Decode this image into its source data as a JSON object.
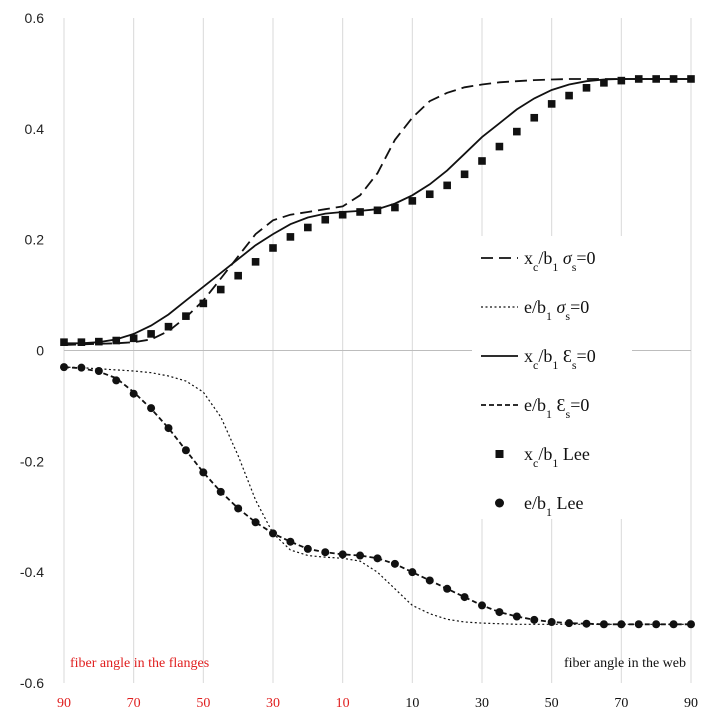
{
  "chart_data": {
    "type": "line",
    "ylim": [
      -0.6,
      0.6
    ],
    "yticks": [
      "0.6",
      "0.4",
      "0.2",
      "0",
      "-0.2",
      "-0.4",
      "-0.6"
    ],
    "x_ticks": [
      {
        "label": "90",
        "group": "flange"
      },
      {
        "label": "70",
        "group": "flange"
      },
      {
        "label": "50",
        "group": "flange"
      },
      {
        "label": "30",
        "group": "flange"
      },
      {
        "label": "10",
        "group": "flange"
      },
      {
        "label": "10",
        "group": "web"
      },
      {
        "label": "30",
        "group": "web"
      },
      {
        "label": "50",
        "group": "web"
      },
      {
        "label": "70",
        "group": "web"
      },
      {
        "label": "90",
        "group": "web"
      }
    ],
    "x_note_left": "fiber angle in the flanges",
    "x_note_right": "fiber angle in the web",
    "grid": "vertical",
    "legend_position": "right-middle",
    "colors": {
      "flange_ticks": "#e02020",
      "web_ticks": "#111111",
      "series": "#111111"
    },
    "series": [
      {
        "legend": {
          "base": "x",
          "sub": "c",
          "mid": "/b",
          "sub2": "1",
          "sym": " σ",
          "sym_sub": "s",
          "tail": "=0"
        },
        "style": "long-dash",
        "marker": "none",
        "x": [
          0,
          10,
          20,
          30,
          40,
          50,
          60,
          70,
          80,
          90,
          100,
          110,
          120,
          130,
          140,
          150,
          160,
          170,
          180,
          190,
          200,
          210,
          220,
          230,
          240,
          250,
          260,
          270,
          280,
          290,
          300,
          310,
          320,
          330,
          340,
          350,
          360
        ],
        "y": [
          0.01,
          0.011,
          0.012,
          0.013,
          0.015,
          0.02,
          0.035,
          0.06,
          0.09,
          0.13,
          0.17,
          0.21,
          0.235,
          0.245,
          0.25,
          0.255,
          0.26,
          0.28,
          0.32,
          0.38,
          0.42,
          0.45,
          0.465,
          0.475,
          0.48,
          0.484,
          0.486,
          0.488,
          0.489,
          0.49,
          0.49,
          0.49,
          0.49,
          0.49,
          0.49,
          0.49,
          0.49
        ]
      },
      {
        "legend": {
          "base": "e",
          "sub": "",
          "mid": "/b",
          "sub2": "1",
          "sym": " σ",
          "sym_sub": "s",
          "tail": "=0"
        },
        "style": "dotted",
        "marker": "none",
        "x": [
          0,
          10,
          20,
          30,
          40,
          50,
          60,
          70,
          80,
          90,
          100,
          110,
          120,
          130,
          140,
          150,
          160,
          170,
          180,
          190,
          200,
          210,
          220,
          230,
          240,
          250,
          260,
          270,
          280,
          290,
          300,
          310,
          320,
          330,
          340,
          350,
          360
        ],
        "y": [
          -0.03,
          -0.031,
          -0.033,
          -0.035,
          -0.037,
          -0.04,
          -0.046,
          -0.055,
          -0.075,
          -0.12,
          -0.19,
          -0.27,
          -0.33,
          -0.36,
          -0.37,
          -0.373,
          -0.375,
          -0.38,
          -0.4,
          -0.43,
          -0.46,
          -0.475,
          -0.485,
          -0.49,
          -0.492,
          -0.493,
          -0.494,
          -0.494,
          -0.494,
          -0.494,
          -0.494,
          -0.494,
          -0.494,
          -0.494,
          -0.494,
          -0.494,
          -0.494
        ]
      },
      {
        "legend": {
          "base": "x",
          "sub": "c",
          "mid": "/b",
          "sub2": "1",
          "sym": " Ɛ",
          "sym_sub": "s",
          "tail": "=0"
        },
        "style": "solid",
        "marker": "none",
        "x": [
          0,
          10,
          20,
          30,
          40,
          50,
          60,
          70,
          80,
          90,
          100,
          110,
          120,
          130,
          140,
          150,
          160,
          170,
          180,
          190,
          200,
          210,
          220,
          230,
          240,
          250,
          260,
          270,
          280,
          290,
          300,
          310,
          320,
          330,
          340,
          350,
          360
        ],
        "y": [
          0.013,
          0.013,
          0.015,
          0.02,
          0.03,
          0.045,
          0.065,
          0.09,
          0.115,
          0.14,
          0.165,
          0.19,
          0.21,
          0.228,
          0.24,
          0.247,
          0.25,
          0.252,
          0.255,
          0.265,
          0.28,
          0.3,
          0.325,
          0.355,
          0.385,
          0.41,
          0.435,
          0.455,
          0.47,
          0.48,
          0.486,
          0.489,
          0.49,
          0.49,
          0.49,
          0.49,
          0.49
        ]
      },
      {
        "legend": {
          "base": "e",
          "sub": "",
          "mid": "/b",
          "sub2": "1",
          "sym": " Ɛ",
          "sym_sub": "s",
          "tail": "=0"
        },
        "style": "short-dash",
        "marker": "none",
        "x": [
          0,
          10,
          20,
          30,
          40,
          50,
          60,
          70,
          80,
          90,
          100,
          110,
          120,
          130,
          140,
          150,
          160,
          170,
          180,
          190,
          200,
          210,
          220,
          230,
          240,
          250,
          260,
          270,
          280,
          290,
          300,
          310,
          320,
          330,
          340,
          350,
          360
        ],
        "y": [
          -0.03,
          -0.032,
          -0.038,
          -0.05,
          -0.075,
          -0.105,
          -0.14,
          -0.18,
          -0.22,
          -0.255,
          -0.285,
          -0.31,
          -0.33,
          -0.345,
          -0.358,
          -0.364,
          -0.368,
          -0.37,
          -0.375,
          -0.385,
          -0.4,
          -0.415,
          -0.43,
          -0.445,
          -0.46,
          -0.472,
          -0.48,
          -0.486,
          -0.49,
          -0.492,
          -0.493,
          -0.494,
          -0.494,
          -0.494,
          -0.494,
          -0.494,
          -0.494
        ]
      },
      {
        "legend": {
          "base": "x",
          "sub": "c",
          "mid": "/b",
          "sub2": "1",
          "sym": " Lee",
          "sym_sub": "",
          "tail": ""
        },
        "style": "none",
        "marker": "square",
        "x": [
          0,
          10,
          20,
          30,
          40,
          50,
          60,
          70,
          80,
          90,
          100,
          110,
          120,
          130,
          140,
          150,
          160,
          170,
          180,
          190,
          200,
          210,
          220,
          230,
          240,
          250,
          260,
          270,
          280,
          290,
          300,
          310,
          320,
          330,
          340,
          350,
          360
        ],
        "y": [
          0.015,
          0.015,
          0.016,
          0.018,
          0.022,
          0.03,
          0.043,
          0.062,
          0.085,
          0.11,
          0.135,
          0.16,
          0.185,
          0.205,
          0.222,
          0.236,
          0.245,
          0.25,
          0.253,
          0.258,
          0.27,
          0.282,
          0.298,
          0.318,
          0.342,
          0.368,
          0.395,
          0.42,
          0.445,
          0.46,
          0.474,
          0.483,
          0.487,
          0.49,
          0.49,
          0.49,
          0.49
        ]
      },
      {
        "legend": {
          "base": "e",
          "sub": "",
          "mid": "/b",
          "sub2": "1",
          "sym": " Lee",
          "sym_sub": "",
          "tail": ""
        },
        "style": "none",
        "marker": "circle",
        "x": [
          0,
          10,
          20,
          30,
          40,
          50,
          60,
          70,
          80,
          90,
          100,
          110,
          120,
          130,
          140,
          150,
          160,
          170,
          180,
          190,
          200,
          210,
          220,
          230,
          240,
          250,
          260,
          270,
          280,
          290,
          300,
          310,
          320,
          330,
          340,
          350,
          360
        ],
        "y": [
          -0.03,
          -0.031,
          -0.037,
          -0.054,
          -0.078,
          -0.104,
          -0.14,
          -0.18,
          -0.22,
          -0.255,
          -0.285,
          -0.31,
          -0.33,
          -0.345,
          -0.358,
          -0.364,
          -0.368,
          -0.37,
          -0.375,
          -0.385,
          -0.4,
          -0.415,
          -0.43,
          -0.445,
          -0.46,
          -0.472,
          -0.48,
          -0.486,
          -0.49,
          -0.492,
          -0.493,
          -0.494,
          -0.494,
          -0.494,
          -0.494,
          -0.494,
          -0.494
        ]
      }
    ]
  }
}
